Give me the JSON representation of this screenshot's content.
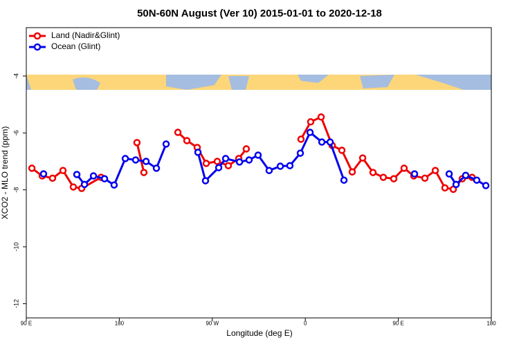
{
  "chart_data": {
    "type": "line",
    "title": "50N-60N August (Ver 10)   2015-01-01 to 2020-12-18",
    "x_label": "Longitude (deg E)",
    "y_label": "XCO2 - MLO trend (ppm)",
    "xlim": [
      90,
      540
    ],
    "ylim": [
      -12.5,
      -2.3
    ],
    "xticks": [
      {
        "value": 90,
        "label": "90 E"
      },
      180,
      {
        "value": 270,
        "label": "90 W"
      },
      {
        "value": 360,
        "label": "0"
      },
      {
        "value": 450,
        "label": "90 E"
      },
      {
        "value": 540,
        "label": "180"
      }
    ],
    "yticks": [
      -4,
      -6,
      -8,
      -10,
      -12
    ],
    "legend": "top-left",
    "series": [
      {
        "name": "Land (Nadir&Glint)",
        "color": "#ee0000",
        "x": [
          95.4,
          105.4,
          115.4,
          125.5,
          135.5,
          143.6,
          162.3,
          169,
          197.1,
          203.8,
          220,
          236.7,
          245.4,
          255.4,
          264.1,
          274.8,
          285.5,
          295.6,
          302.9,
          330,
          355.8,
          365.2,
          375.3,
          386.0,
          395.4,
          405.4,
          415.5,
          425.5,
          435.5,
          445.6,
          455.6,
          465.0,
          475.7,
          485.8,
          495.1,
          503.2,
          511.9,
          521.3
        ],
        "values": [
          -7.24,
          -7.51,
          -7.59,
          -7.32,
          -7.9,
          -7.95,
          -7.56,
          null,
          -6.34,
          -7.39,
          null,
          -5.98,
          -6.27,
          -6.51,
          -7.07,
          -7.0,
          -7.15,
          -6.9,
          -6.56,
          null,
          -6.22,
          -5.61,
          -5.44,
          -6.44,
          -6.61,
          -7.37,
          -6.88,
          -7.39,
          -7.56,
          -7.61,
          -7.24,
          -7.51,
          -7.59,
          -7.32,
          -7.93,
          -7.98,
          -7.61,
          -7.56
        ]
      },
      {
        "name": "Ocean (Glint)",
        "color": "#0000ee",
        "x": [
          106.7,
          120,
          138.9,
          146.3,
          155.0,
          165.7,
          175.0,
          185.8,
          195.8,
          205.9,
          215.9,
          225.3,
          240,
          256.1,
          263.4,
          276.2,
          282.9,
          296.3,
          305.6,
          314.3,
          325.0,
          335.8,
          345.1,
          355.2,
          364.6,
          376.0,
          384.0,
          397.4,
          430,
          465.7,
          480,
          499.2,
          505.9,
          515.2,
          525.9,
          534.7
        ],
        "values": [
          -7.44,
          null,
          -7.46,
          -7.81,
          -7.51,
          -7.61,
          -7.83,
          -6.9,
          -6.95,
          -7.0,
          -7.24,
          -6.39,
          null,
          -6.68,
          -7.68,
          -7.22,
          -6.9,
          -7.02,
          -6.95,
          -6.78,
          -7.32,
          -7.17,
          -7.15,
          -6.71,
          -5.98,
          -6.32,
          -6.32,
          -7.66,
          null,
          -7.44,
          null,
          -7.44,
          -7.81,
          -7.49,
          -7.66,
          -7.85
        ]
      }
    ]
  }
}
